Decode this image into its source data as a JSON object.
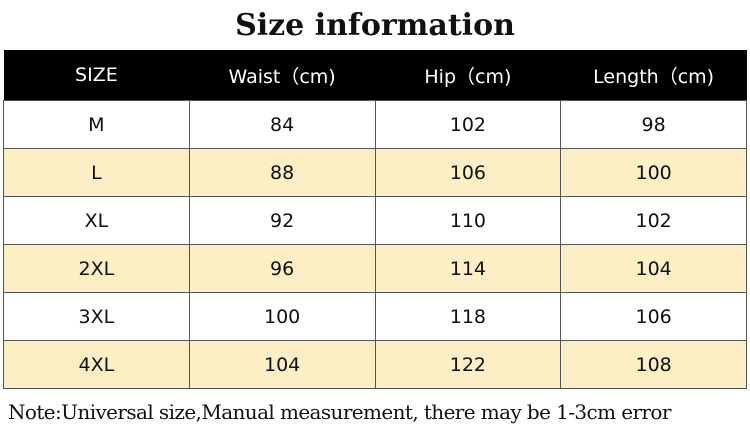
{
  "title": "Size information",
  "headers": [
    "SIZE",
    "Waist（cm)",
    "Hip（cm)",
    "Length（cm)"
  ],
  "rows": [
    [
      "M",
      "84",
      "102",
      "98"
    ],
    [
      "L",
      "88",
      "106",
      "100"
    ],
    [
      "XL",
      "92",
      "110",
      "102"
    ],
    [
      "2XL",
      "96",
      "114",
      "104"
    ],
    [
      "3XL",
      "100",
      "118",
      "106"
    ],
    [
      "4XL",
      "104",
      "122",
      "108"
    ]
  ],
  "note": "Note:Universal size,Manual measurement, there may be 1-3cm error",
  "colors": {
    "header_bg": "#000000",
    "alt_row_bg": "#fcefc6"
  }
}
